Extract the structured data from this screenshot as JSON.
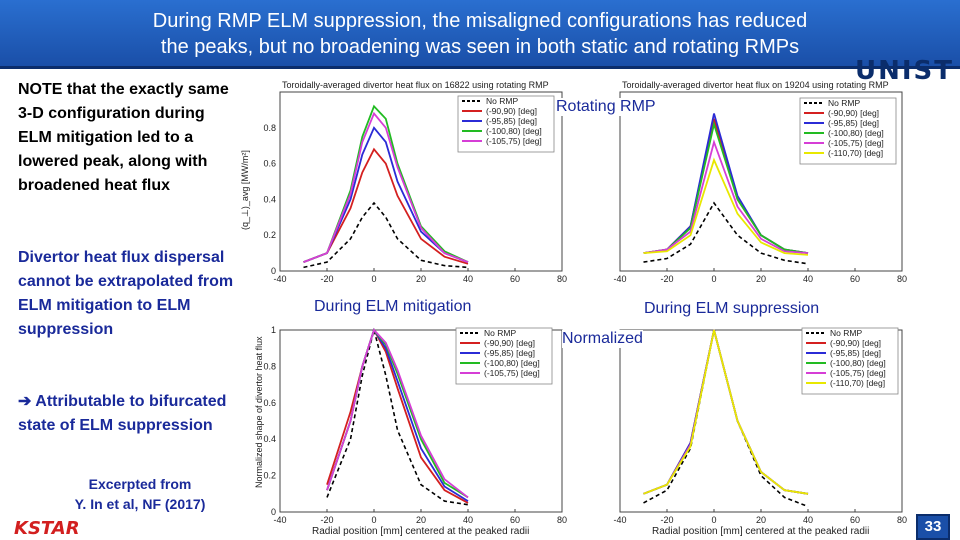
{
  "title": {
    "line1": "During RMP ELM suppression, the misaligned configurations has reduced",
    "line2": "the peaks, but no broadening was seen in both static and rotating RMPs"
  },
  "logo": {
    "text": "UNIST"
  },
  "left": {
    "note": "NOTE that the exactly same 3-D configuration during ELM mitigation led to a lowered peak, along with broadened heat flux",
    "divertor": "Divertor heat flux dispersal cannot be extrapolated from ELM mitigation to ELM suppression",
    "attrib": "➔ Attributable to bifurcated state of ELM suppression",
    "excerpt_line1": "Excerpted from",
    "excerpt_line2": "Y. In et al, NF (2017)"
  },
  "footer": {
    "brand": "KSTAR",
    "page": "33"
  },
  "callouts": {
    "rotating": "Rotating RMP",
    "mitigation": "During ELM mitigation",
    "suppression": "During ELM suppression",
    "normalized": "Normalized"
  },
  "plots": {
    "top_left_title": "Toroidally-averaged divertor heat flux on 16822 using rotating RMP",
    "top_right_title": "Toroidally-averaged divertor heat flux on 19204 using rotating RMP",
    "x_label": "Radial position [mm] centered at the peaked radii",
    "y_label_top": "(q_⊥)_avg [MW/m²]",
    "y_label_bottom": "Normalized shape of divertor heat flux",
    "colors": {
      "none": "#000000",
      "a": "#d42020",
      "b": "#2b2bd6",
      "c": "#22bb22",
      "d": "#d63ed6",
      "e": "#e8e800"
    }
  },
  "chart_data": [
    {
      "type": "line",
      "title": "Toroidally-averaged divertor heat flux on 16822 using rotating RMP",
      "xlabel": "",
      "ylabel": "(q_⊥)_avg [MW/m²]",
      "xlim": [
        -40,
        80
      ],
      "ylim": [
        0,
        1
      ],
      "x_ticks": [
        "-40",
        "-20",
        "0",
        "20",
        "40",
        "60",
        "80"
      ],
      "y_ticks": [
        "0",
        "0.2",
        "0.4",
        "0.6",
        "0.8"
      ],
      "series": [
        {
          "name": "No RMP",
          "x": [
            -30,
            -20,
            -10,
            -5,
            0,
            5,
            10,
            20,
            30,
            40
          ],
          "y": [
            0.02,
            0.05,
            0.18,
            0.3,
            0.38,
            0.3,
            0.18,
            0.06,
            0.03,
            0.02
          ]
        },
        {
          "name": "(-90,90) [deg]",
          "x": [
            -30,
            -20,
            -10,
            -5,
            0,
            5,
            10,
            20,
            30,
            40
          ],
          "y": [
            0.05,
            0.1,
            0.35,
            0.55,
            0.68,
            0.6,
            0.42,
            0.18,
            0.08,
            0.04
          ]
        },
        {
          "name": "(-95,85) [deg]",
          "x": [
            -30,
            -20,
            -10,
            -5,
            0,
            5,
            10,
            20,
            30,
            40
          ],
          "y": [
            0.05,
            0.1,
            0.4,
            0.65,
            0.8,
            0.72,
            0.5,
            0.22,
            0.1,
            0.05
          ]
        },
        {
          "name": "(-100,80) [deg]",
          "x": [
            -30,
            -20,
            -10,
            -5,
            0,
            5,
            10,
            20,
            30,
            40
          ],
          "y": [
            0.05,
            0.1,
            0.45,
            0.75,
            0.92,
            0.85,
            0.6,
            0.25,
            0.11,
            0.05
          ]
        },
        {
          "name": "(-105,75) [deg]",
          "x": [
            -30,
            -20,
            -10,
            -5,
            0,
            5,
            10,
            20,
            30,
            40
          ],
          "y": [
            0.05,
            0.1,
            0.43,
            0.72,
            0.88,
            0.8,
            0.58,
            0.24,
            0.1,
            0.05
          ]
        }
      ]
    },
    {
      "type": "line",
      "title": "Toroidally-averaged divertor heat flux on 19204 using rotating RMP",
      "xlabel": "",
      "ylabel": "(q_⊥)_avg [MW/m²]",
      "xlim": [
        -40,
        80
      ],
      "ylim": [
        0,
        1
      ],
      "x_ticks": [
        "-40",
        "-20",
        "0",
        "20",
        "40",
        "60",
        "80"
      ],
      "series": [
        {
          "name": "No RMP",
          "x": [
            -30,
            -20,
            -10,
            0,
            10,
            20,
            30,
            40
          ],
          "y": [
            0.05,
            0.07,
            0.15,
            0.38,
            0.2,
            0.1,
            0.06,
            0.04
          ]
        },
        {
          "name": "(-90,90) [deg]",
          "x": [
            -30,
            -20,
            -10,
            0,
            10,
            20,
            30,
            40
          ],
          "y": [
            0.1,
            0.12,
            0.25,
            0.85,
            0.4,
            0.2,
            0.12,
            0.1
          ]
        },
        {
          "name": "(-95,85) [deg]",
          "x": [
            -30,
            -20,
            -10,
            0,
            10,
            20,
            30,
            40
          ],
          "y": [
            0.1,
            0.12,
            0.25,
            0.88,
            0.42,
            0.2,
            0.12,
            0.1
          ]
        },
        {
          "name": "(-100,80) [deg]",
          "x": [
            -30,
            -20,
            -10,
            0,
            10,
            20,
            30,
            40
          ],
          "y": [
            0.1,
            0.12,
            0.24,
            0.82,
            0.4,
            0.2,
            0.12,
            0.1
          ]
        },
        {
          "name": "(-105,75) [deg]",
          "x": [
            -30,
            -20,
            -10,
            0,
            10,
            20,
            30,
            40
          ],
          "y": [
            0.1,
            0.12,
            0.22,
            0.72,
            0.36,
            0.18,
            0.11,
            0.1
          ]
        },
        {
          "name": "(-110,70) [deg]",
          "x": [
            -30,
            -20,
            -10,
            0,
            10,
            20,
            30,
            40
          ],
          "y": [
            0.1,
            0.11,
            0.2,
            0.62,
            0.32,
            0.16,
            0.1,
            0.09
          ]
        }
      ]
    },
    {
      "type": "line",
      "xlabel": "Radial position [mm] centered at the peaked radii",
      "ylabel": "Normalized shape of divertor heat flux",
      "xlim": [
        -40,
        80
      ],
      "ylim": [
        0,
        1
      ],
      "x_ticks": [
        "-40",
        "-20",
        "0",
        "20",
        "40",
        "60",
        "80"
      ],
      "y_ticks": [
        "0",
        "0.2",
        "0.4",
        "0.6",
        "0.8",
        "1"
      ],
      "series": [
        {
          "name": "No RMP",
          "x": [
            -20,
            -10,
            -5,
            0,
            5,
            10,
            20,
            30,
            40
          ],
          "y": [
            0.08,
            0.4,
            0.75,
            1.0,
            0.75,
            0.45,
            0.15,
            0.06,
            0.04
          ]
        },
        {
          "name": "(-90,90) [deg]",
          "x": [
            -20,
            -10,
            -5,
            0,
            5,
            10,
            20,
            30,
            40
          ],
          "y": [
            0.15,
            0.55,
            0.8,
            1.0,
            0.88,
            0.68,
            0.3,
            0.12,
            0.05
          ]
        },
        {
          "name": "(-95,85) [deg]",
          "x": [
            -20,
            -10,
            -5,
            0,
            5,
            10,
            20,
            30,
            40
          ],
          "y": [
            0.12,
            0.5,
            0.8,
            1.0,
            0.9,
            0.72,
            0.35,
            0.14,
            0.06
          ]
        },
        {
          "name": "(-100,80) [deg]",
          "x": [
            -20,
            -10,
            -5,
            0,
            5,
            10,
            20,
            30,
            40
          ],
          "y": [
            0.12,
            0.5,
            0.8,
            1.0,
            0.92,
            0.76,
            0.4,
            0.16,
            0.08
          ]
        },
        {
          "name": "(-105,75) [deg]",
          "x": [
            -20,
            -10,
            -5,
            0,
            5,
            10,
            20,
            30,
            40
          ],
          "y": [
            0.12,
            0.5,
            0.8,
            1.0,
            0.93,
            0.78,
            0.42,
            0.18,
            0.08
          ]
        }
      ]
    },
    {
      "type": "line",
      "xlabel": "Radial position [mm] centered at the peaked radii",
      "ylabel": "Normalized shape of divertor heat flux",
      "xlim": [
        -40,
        80
      ],
      "ylim": [
        0,
        1
      ],
      "x_ticks": [
        "-40",
        "-20",
        "0",
        "20",
        "40",
        "60",
        "80"
      ],
      "series": [
        {
          "name": "No RMP",
          "x": [
            -30,
            -20,
            -10,
            0,
            10,
            20,
            30,
            40
          ],
          "y": [
            0.05,
            0.12,
            0.35,
            1.0,
            0.5,
            0.2,
            0.08,
            0.03
          ]
        },
        {
          "name": "(-90,90) [deg]",
          "x": [
            -30,
            -20,
            -10,
            0,
            10,
            20,
            30,
            40
          ],
          "y": [
            0.1,
            0.15,
            0.38,
            1.0,
            0.5,
            0.22,
            0.12,
            0.1
          ]
        },
        {
          "name": "(-95,85) [deg]",
          "x": [
            -30,
            -20,
            -10,
            0,
            10,
            20,
            30,
            40
          ],
          "y": [
            0.1,
            0.15,
            0.38,
            1.0,
            0.5,
            0.22,
            0.12,
            0.1
          ]
        },
        {
          "name": "(-100,80) [deg]",
          "x": [
            -30,
            -20,
            -10,
            0,
            10,
            20,
            30,
            40
          ],
          "y": [
            0.1,
            0.15,
            0.37,
            1.0,
            0.5,
            0.22,
            0.12,
            0.1
          ]
        },
        {
          "name": "(-105,75) [deg]",
          "x": [
            -30,
            -20,
            -10,
            0,
            10,
            20,
            30,
            40
          ],
          "y": [
            0.1,
            0.15,
            0.37,
            1.0,
            0.5,
            0.22,
            0.12,
            0.1
          ]
        },
        {
          "name": "(-110,70) [deg]",
          "x": [
            -30,
            -20,
            -10,
            0,
            10,
            20,
            30,
            40
          ],
          "y": [
            0.1,
            0.15,
            0.36,
            1.0,
            0.5,
            0.22,
            0.12,
            0.1
          ]
        }
      ]
    }
  ]
}
